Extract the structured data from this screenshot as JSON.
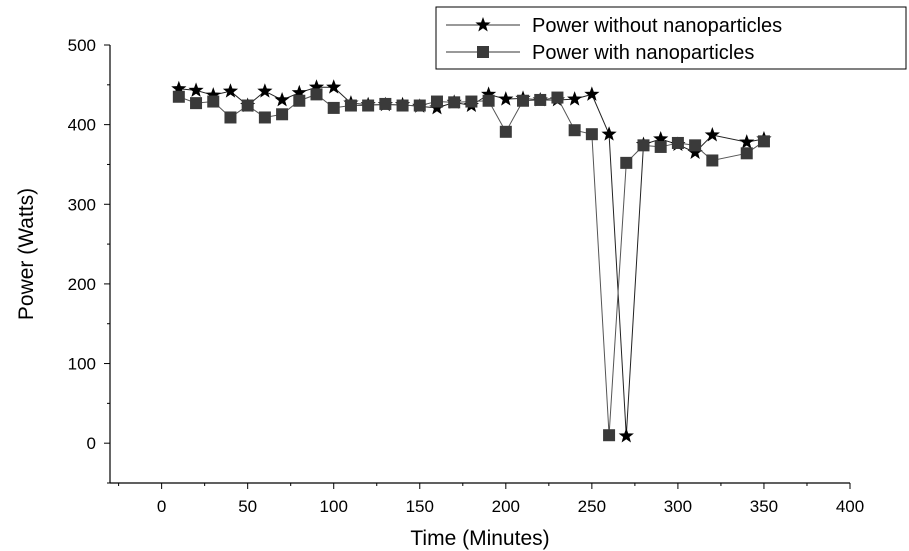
{
  "chart_data": {
    "type": "line",
    "title": "",
    "xlabel": "Time (Minutes)",
    "ylabel": "Power (Watts)",
    "xlim": [
      -30,
      400
    ],
    "ylim": [
      -50,
      500
    ],
    "xticks": [
      0,
      50,
      100,
      150,
      200,
      250,
      300,
      350,
      400
    ],
    "yticks": [
      0,
      100,
      200,
      300,
      400,
      500
    ],
    "grid": false,
    "legend": "top-right",
    "series": [
      {
        "name": "Power without nanoparticles",
        "marker": "star",
        "color": "#000000",
        "x": [
          10,
          20,
          30,
          40,
          50,
          60,
          70,
          80,
          90,
          100,
          110,
          120,
          130,
          140,
          150,
          160,
          170,
          180,
          190,
          200,
          210,
          220,
          230,
          240,
          250,
          260,
          270,
          280,
          290,
          300,
          310,
          320,
          340,
          350
        ],
        "y": [
          445,
          443,
          437,
          442,
          424,
          442,
          431,
          440,
          447,
          447,
          427,
          425,
          425,
          425,
          423,
          421,
          428,
          424,
          438,
          432,
          433,
          431,
          431,
          432,
          438,
          388,
          9,
          375,
          382,
          375,
          365,
          387,
          378,
          382
        ]
      },
      {
        "name": "Power with nanoparticles",
        "marker": "square",
        "color": "#3a3a3a",
        "x": [
          10,
          20,
          30,
          40,
          50,
          60,
          70,
          80,
          90,
          100,
          110,
          120,
          130,
          140,
          150,
          160,
          170,
          180,
          190,
          200,
          210,
          220,
          230,
          240,
          250,
          260,
          270,
          280,
          290,
          300,
          310,
          320,
          340,
          350
        ],
        "y": [
          435,
          427,
          429,
          409,
          424,
          409,
          413,
          430,
          438,
          421,
          424,
          424,
          426,
          424,
          424,
          429,
          428,
          429,
          430,
          391,
          430,
          431,
          434,
          393,
          388,
          10,
          352,
          374,
          372,
          377,
          374,
          355,
          364,
          379
        ]
      }
    ]
  }
}
